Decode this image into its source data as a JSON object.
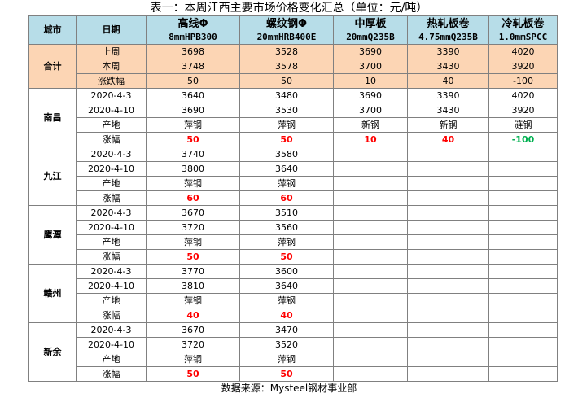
{
  "title": "表一：本周江西主要市场价格变化汇总（单位：元/吨）",
  "header": {
    "city": "城市",
    "date": "日期",
    "products": [
      {
        "name": "高线Φ",
        "spec": "8mmHPB300"
      },
      {
        "name": "螺纹钢Φ",
        "spec": "20mmHRB400E"
      },
      {
        "name": "中厚板",
        "spec": "20mmQ235B"
      },
      {
        "name": "热轧板卷",
        "spec": "4.75mmQ235B"
      },
      {
        "name": "冷轧板卷",
        "spec": "1.0mmSPCC"
      }
    ]
  },
  "summary": {
    "label": "合计",
    "rows": [
      {
        "label": "上周",
        "values": [
          "3698",
          "3528",
          "3690",
          "3390",
          "4020"
        ]
      },
      {
        "label": "本周",
        "values": [
          "3748",
          "3578",
          "3700",
          "3430",
          "3920"
        ]
      },
      {
        "label": "涨跌幅",
        "values": [
          "50",
          "50",
          "10",
          "40",
          "-100"
        ]
      }
    ]
  },
  "cities": [
    {
      "name": "南昌",
      "rows": [
        {
          "label": "2020-4-3",
          "values": [
            "3640",
            "3480",
            "3690",
            "3390",
            "4020"
          ]
        },
        {
          "label": "2020-4-10",
          "values": [
            "3690",
            "3530",
            "3700",
            "3430",
            "3920"
          ]
        },
        {
          "label": "产地",
          "values": [
            "萍钢",
            "萍钢",
            "新钢",
            "新钢",
            "涟钢"
          ]
        },
        {
          "label": "涨幅",
          "values": [
            "50",
            "50",
            "10",
            "40",
            "-100"
          ]
        }
      ]
    },
    {
      "name": "九江",
      "rows": [
        {
          "label": "2020-4-3",
          "values": [
            "3740",
            "3580",
            "",
            "",
            ""
          ]
        },
        {
          "label": "2020-4-10",
          "values": [
            "3800",
            "3640",
            "",
            "",
            ""
          ]
        },
        {
          "label": "产地",
          "values": [
            "萍钢",
            "萍钢",
            "",
            "",
            ""
          ]
        },
        {
          "label": "涨幅",
          "values": [
            "60",
            "60",
            "",
            "",
            ""
          ]
        }
      ]
    },
    {
      "name": "鹰潭",
      "rows": [
        {
          "label": "2020-4-3",
          "values": [
            "3670",
            "3510",
            "",
            "",
            ""
          ]
        },
        {
          "label": "2020-4-10",
          "values": [
            "3720",
            "3560",
            "",
            "",
            ""
          ]
        },
        {
          "label": "产地",
          "values": [
            "萍钢",
            "萍钢",
            "",
            "",
            ""
          ]
        },
        {
          "label": "涨幅",
          "values": [
            "50",
            "50",
            "",
            "",
            ""
          ]
        }
      ]
    },
    {
      "name": "赣州",
      "rows": [
        {
          "label": "2020-4-3",
          "values": [
            "3770",
            "3600",
            "",
            "",
            ""
          ]
        },
        {
          "label": "2020-4-10",
          "values": [
            "3810",
            "3640",
            "",
            "",
            ""
          ]
        },
        {
          "label": "产地",
          "values": [
            "萍钢",
            "萍钢",
            "",
            "",
            ""
          ]
        },
        {
          "label": "涨幅",
          "values": [
            "40",
            "40",
            "",
            "",
            ""
          ]
        }
      ]
    },
    {
      "name": "新余",
      "rows": [
        {
          "label": "2020-4-3",
          "values": [
            "3670",
            "3470",
            "",
            "",
            ""
          ]
        },
        {
          "label": "2020-4-10",
          "values": [
            "3720",
            "3520",
            "",
            "",
            ""
          ]
        },
        {
          "label": "产地",
          "values": [
            "萍钢",
            "萍钢",
            "",
            "",
            ""
          ]
        },
        {
          "label": "涨幅",
          "values": [
            "50",
            "50",
            "",
            "",
            ""
          ]
        }
      ]
    }
  ],
  "colors": {
    "header_bg": "#b7dde8",
    "summary_bg": "#fcd5b4",
    "rise": "#ff0000",
    "fall": "#00b050"
  },
  "footer": "数据来源：Mysteel钢材事业部"
}
